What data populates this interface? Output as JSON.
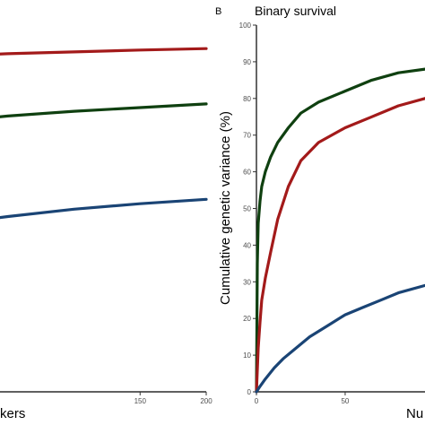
{
  "chart_data": [
    {
      "type": "line",
      "panel": "A (cropped)",
      "title": "",
      "xlabel": "kers",
      "ylabel": "",
      "xlim": [
        0,
        200
      ],
      "ylim": [
        0,
        100
      ],
      "x_ticks": [
        {
          "value": 0,
          "label": ""
        },
        {
          "value": 150,
          "label": "150"
        },
        {
          "value": 200,
          "label": "200"
        }
      ],
      "series": [
        {
          "color": "#a31a1a",
          "x": [
            0,
            50,
            100,
            150,
            200
          ],
          "y": [
            91.5,
            92.2,
            92.7,
            93.2,
            93.6
          ]
        },
        {
          "color": "#0f4010",
          "x": [
            0,
            50,
            100,
            150,
            200
          ],
          "y": [
            73.5,
            75.2,
            76.5,
            77.5,
            78.5
          ]
        },
        {
          "color": "#1a4475",
          "x": [
            0,
            50,
            100,
            150,
            200
          ],
          "y": [
            45.5,
            47.8,
            49.8,
            51.3,
            52.5
          ]
        }
      ]
    },
    {
      "type": "line",
      "panel": "B",
      "panel_letter": "B",
      "title": "Binary survival",
      "xlabel": "Nu",
      "ylabel": "Cumulative genetic variance (%)",
      "xlim": [
        0,
        95
      ],
      "ylim": [
        0,
        100
      ],
      "x_ticks": [
        {
          "value": 0,
          "label": "0"
        },
        {
          "value": 50,
          "label": "50"
        }
      ],
      "y_ticks": [
        0,
        10,
        20,
        30,
        40,
        50,
        60,
        70,
        80,
        90,
        100
      ],
      "series": [
        {
          "color": "#0f4010",
          "x": [
            0,
            0.5,
            1,
            2,
            3,
            5,
            8,
            12,
            18,
            25,
            35,
            50,
            65,
            80,
            95
          ],
          "y": [
            0,
            35,
            46,
            52,
            56,
            60,
            64,
            68,
            72,
            76,
            79,
            82,
            85,
            87,
            88
          ]
        },
        {
          "color": "#a31a1a",
          "x": [
            0,
            1,
            2,
            3,
            5,
            8,
            12,
            18,
            25,
            35,
            50,
            65,
            80,
            95
          ],
          "y": [
            0,
            12,
            19,
            25,
            31,
            38,
            47,
            56,
            63,
            68,
            72,
            75,
            78,
            80
          ]
        },
        {
          "color": "#1a4475",
          "x": [
            0,
            2,
            5,
            10,
            15,
            20,
            30,
            40,
            50,
            60,
            70,
            80,
            95
          ],
          "y": [
            0,
            1.5,
            3.5,
            6.5,
            9,
            11,
            15,
            18,
            21,
            23,
            25,
            27,
            29
          ]
        }
      ]
    }
  ]
}
